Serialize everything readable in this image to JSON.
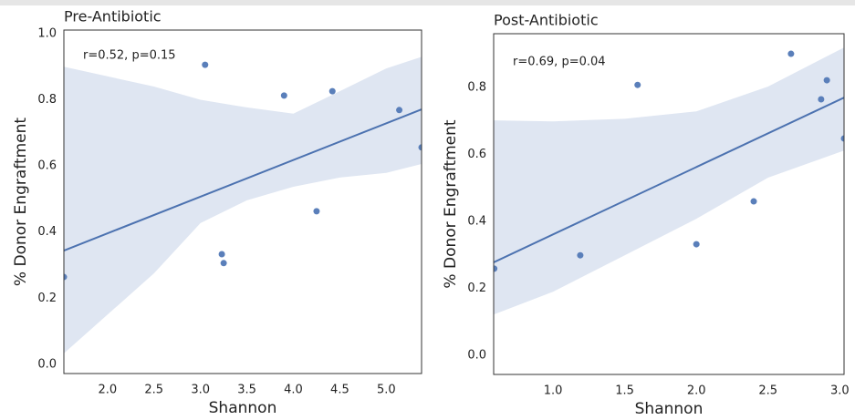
{
  "chart_data": [
    {
      "type": "scatter",
      "title": "Pre-Antibiotic",
      "x_label": "Shannon",
      "y_label": "% Donor Engraftment",
      "annotation": "r=0.52, p=0.15",
      "color": "#5a7fba",
      "line_color": "#4c72b0",
      "band_color": "#dfe6f2",
      "x": [
        1.53,
        3.05,
        3.23,
        3.25,
        3.9,
        4.42,
        4.25,
        5.14,
        5.38
      ],
      "values": [
        0.264,
        0.906,
        0.333,
        0.306,
        0.813,
        0.826,
        0.463,
        0.769,
        0.656
      ],
      "fit": {
        "x": [
          1.53,
          5.38
        ],
        "y": [
          0.344,
          0.771
        ]
      },
      "band": {
        "x": [
          1.53,
          2.5,
          3.0,
          3.5,
          4.0,
          4.5,
          5.0,
          5.38
        ],
        "upper": [
          0.9,
          0.84,
          0.8,
          0.777,
          0.758,
          0.826,
          0.895,
          0.93
        ],
        "lower": [
          0.033,
          0.275,
          0.427,
          0.496,
          0.537,
          0.565,
          0.579,
          0.606
        ]
      },
      "xlim": [
        1.53,
        5.38
      ],
      "ylim": [
        -0.028,
        1.011
      ],
      "xticks": [
        {
          "value": 2,
          "label": "2.0"
        },
        2.5,
        {
          "value": 3,
          "label": "3.0"
        },
        3.5,
        {
          "value": 4,
          "label": "4.0"
        },
        4.5,
        {
          "value": 5,
          "label": "5.0"
        }
      ],
      "yticks": [
        {
          "value": 0,
          "label": "0.0"
        },
        0.2,
        0.4,
        0.6,
        0.8,
        {
          "value": 1,
          "label": "1.0"
        }
      ]
    },
    {
      "type": "scatter",
      "title": "Post-Antibiotic",
      "x_label": "Shannon",
      "y_label": "% Donor Engraftment",
      "annotation": "r=0.69, p=0.04",
      "color": "#5a7fba",
      "line_color": "#4c72b0",
      "band_color": "#dfe6f2",
      "x": [
        0.59,
        1.19,
        1.59,
        2.0,
        2.4,
        2.66,
        2.87,
        2.91,
        3.03
      ],
      "values": [
        0.259,
        0.299,
        0.808,
        0.332,
        0.46,
        0.901,
        0.765,
        0.822,
        0.648
      ],
      "fit": {
        "x": [
          0.586,
          3.03
        ],
        "y": [
          0.278,
          0.77
        ]
      },
      "band": {
        "x": [
          0.586,
          1.0,
          1.5,
          2.0,
          2.5,
          3.03
        ],
        "upper": [
          0.702,
          0.699,
          0.707,
          0.729,
          0.803,
          0.92
        ],
        "lower": [
          0.122,
          0.19,
          0.299,
          0.408,
          0.531,
          0.612
        ]
      },
      "xlim": [
        0.586,
        3.03
      ],
      "ylim": [
        -0.057,
        0.961
      ],
      "xticks": [
        {
          "value": 1,
          "label": "1.0"
        },
        1.5,
        {
          "value": 2,
          "label": "2.0"
        },
        2.5,
        {
          "value": 3,
          "label": "3.0"
        }
      ],
      "yticks": [
        {
          "value": 0,
          "label": "0.0"
        },
        0.2,
        0.4,
        0.6,
        0.8
      ]
    }
  ]
}
